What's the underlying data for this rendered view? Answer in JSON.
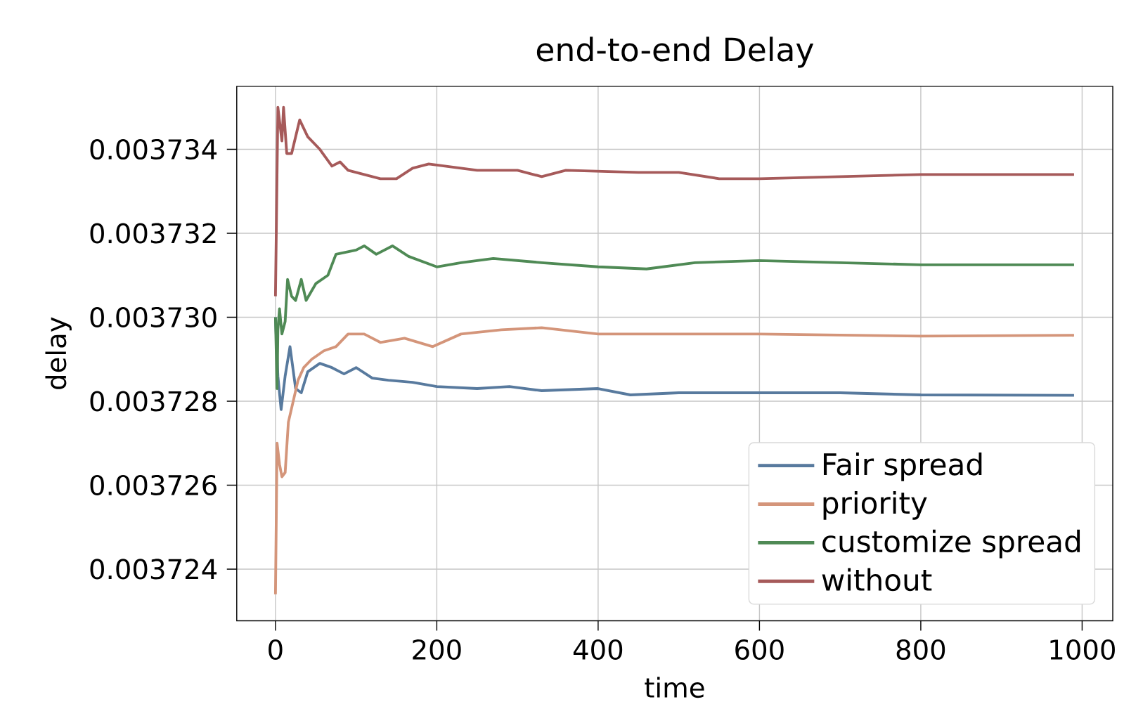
{
  "chart_data": {
    "type": "line",
    "title": "end-to-end Delay",
    "xlabel": "time",
    "ylabel": "delay",
    "xlim": [
      -48,
      1038
    ],
    "ylim": [
      0.00372277,
      0.0037355
    ],
    "xticks": [
      0,
      200,
      400,
      600,
      800,
      1000
    ],
    "yticks": [
      0.003724,
      0.003726,
      0.003728,
      {
        "value": 0.00373,
        "label": "0.003730"
      },
      0.003732,
      0.003734
    ],
    "grid": true,
    "legend": "bottom right",
    "line_style": "solid",
    "marker": "none",
    "series": [
      {
        "name": "Fair spread",
        "color": "#587a9e",
        "x": [
          0,
          3,
          7,
          12,
          18,
          25,
          32,
          40,
          55,
          70,
          85,
          100,
          120,
          140,
          170,
          200,
          250,
          290,
          330,
          400,
          440,
          500,
          600,
          700,
          800,
          990
        ],
        "values": [
          0.00373,
          0.0037286,
          0.0037278,
          0.0037286,
          0.0037293,
          0.0037283,
          0.0037282,
          0.0037287,
          0.0037289,
          0.0037288,
          0.00372865,
          0.0037288,
          0.00372855,
          0.0037285,
          0.00372845,
          0.00372835,
          0.0037283,
          0.00372835,
          0.00372825,
          0.0037283,
          0.00372815,
          0.0037282,
          0.0037282,
          0.0037282,
          0.00372815,
          0.00372814
        ]
      },
      {
        "name": "priority",
        "color": "#d4957a",
        "x": [
          0,
          2,
          5,
          8,
          12,
          16,
          22,
          28,
          35,
          45,
          60,
          75,
          90,
          110,
          130,
          160,
          195,
          230,
          280,
          330,
          400,
          500,
          600,
          800,
          990
        ],
        "values": [
          0.0037234,
          0.003727,
          0.0037265,
          0.0037262,
          0.0037263,
          0.0037275,
          0.003728,
          0.0037285,
          0.0037288,
          0.003729,
          0.0037292,
          0.0037293,
          0.0037296,
          0.0037296,
          0.0037294,
          0.0037295,
          0.0037293,
          0.0037296,
          0.0037297,
          0.00372975,
          0.0037296,
          0.0037296,
          0.0037296,
          0.00372955,
          0.00372957
        ]
      },
      {
        "name": "customize spread",
        "color": "#4f8a55",
        "x": [
          0,
          2,
          3,
          5,
          8,
          12,
          15,
          20,
          25,
          32,
          38,
          50,
          65,
          75,
          100,
          110,
          125,
          145,
          165,
          200,
          230,
          270,
          330,
          400,
          460,
          520,
          600,
          700,
          800,
          990
        ],
        "values": [
          0.00373,
          0.0037283,
          0.0037297,
          0.0037302,
          0.0037296,
          0.0037299,
          0.0037309,
          0.0037305,
          0.0037304,
          0.0037309,
          0.0037304,
          0.0037308,
          0.003731,
          0.0037315,
          0.0037316,
          0.0037317,
          0.0037315,
          0.0037317,
          0.00373145,
          0.0037312,
          0.0037313,
          0.0037314,
          0.0037313,
          0.0037312,
          0.00373115,
          0.0037313,
          0.00373135,
          0.0037313,
          0.00373125,
          0.00373125
        ]
      },
      {
        "name": "without",
        "color": "#a65a5a",
        "x": [
          0,
          3,
          8,
          10,
          14,
          20,
          30,
          40,
          55,
          70,
          80,
          90,
          110,
          130,
          150,
          170,
          190,
          250,
          300,
          330,
          360,
          450,
          500,
          550,
          600,
          700,
          800,
          990
        ],
        "values": [
          0.0037305,
          0.003735,
          0.0037342,
          0.003735,
          0.0037339,
          0.0037339,
          0.0037347,
          0.0037343,
          0.003734,
          0.0037336,
          0.0037337,
          0.0037335,
          0.0037334,
          0.0037333,
          0.0037333,
          0.00373355,
          0.00373365,
          0.0037335,
          0.0037335,
          0.00373335,
          0.0037335,
          0.00373345,
          0.00373345,
          0.0037333,
          0.0037333,
          0.00373335,
          0.0037334,
          0.0037334
        ]
      }
    ]
  }
}
